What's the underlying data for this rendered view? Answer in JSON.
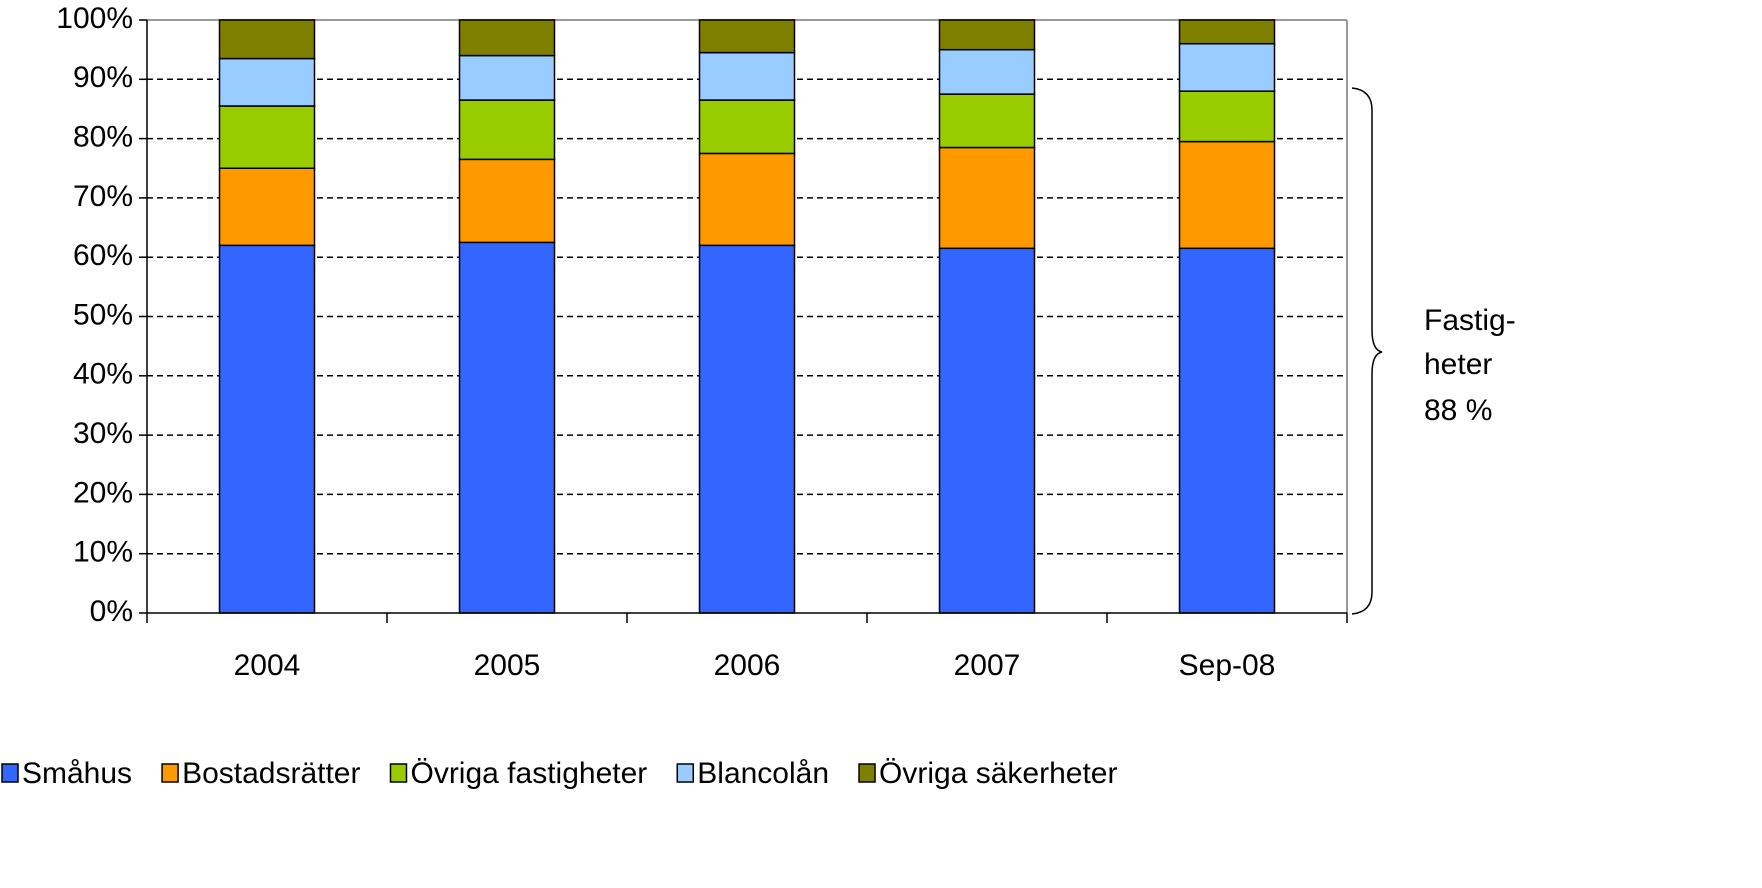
{
  "chart_data": {
    "type": "stacked_bar",
    "categories": [
      "2004",
      "2005",
      "2006",
      "2007",
      "Sep-08"
    ],
    "series": [
      {
        "name": "Småhus",
        "color": "#3366ff",
        "values": [
          62,
          62.5,
          62,
          61.5,
          61.5
        ]
      },
      {
        "name": "Bostadsrätter",
        "color": "#ff9900",
        "values": [
          13,
          14,
          15.5,
          17,
          18
        ]
      },
      {
        "name": "Övriga fastigheter",
        "color": "#99cc00",
        "values": [
          10.5,
          10,
          9,
          9,
          8.5
        ]
      },
      {
        "name": "Blancolån",
        "color": "#99ccff",
        "values": [
          8,
          7.5,
          8,
          7.5,
          8
        ]
      },
      {
        "name": "Övriga säkerheter",
        "color": "#808000",
        "values": [
          6.5,
          6,
          5.5,
          5,
          4
        ]
      }
    ],
    "ylim": [
      0,
      100
    ],
    "yticks": [
      {
        "value": 0,
        "label": "0%"
      },
      {
        "value": 10,
        "label": "10%"
      },
      {
        "value": 20,
        "label": "20%"
      },
      {
        "value": 30,
        "label": "30%"
      },
      {
        "value": 40,
        "label": "40%"
      },
      {
        "value": 50,
        "label": "50%"
      },
      {
        "value": 60,
        "label": "60%"
      },
      {
        "value": 70,
        "label": "70%"
      },
      {
        "value": 80,
        "label": "80%"
      },
      {
        "value": 90,
        "label": "90%"
      },
      {
        "value": 100,
        "label": "100%"
      }
    ],
    "grid": true,
    "legend": "bottom",
    "annotation": [
      "Fastig-",
      "heter",
      "88 %"
    ]
  }
}
